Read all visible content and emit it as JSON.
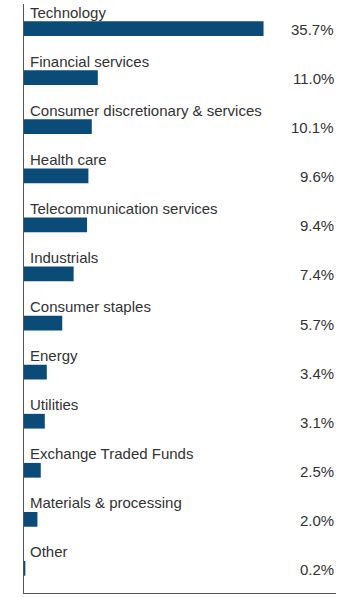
{
  "chart_data": {
    "type": "bar",
    "orientation": "horizontal",
    "categories": [
      "Technology",
      "Financial services",
      "Consumer discretionary & services",
      "Health care",
      "Telecommunication services",
      "Industrials",
      "Consumer staples",
      "Energy",
      "Utilities",
      "Exchange Traded Funds",
      "Materials & processing",
      "Other"
    ],
    "values": [
      35.7,
      11.0,
      10.1,
      9.6,
      9.4,
      7.4,
      5.7,
      3.4,
      3.1,
      2.5,
      2.0,
      0.2
    ],
    "value_labels": [
      "35.7%",
      "11.0%",
      "10.1%",
      "9.6%",
      "9.4%",
      "7.4%",
      "5.7%",
      "3.4%",
      "3.1%",
      "2.5%",
      "2.0%",
      "0.2%"
    ],
    "color": "#0a4b78",
    "xlim": [
      0,
      46.5
    ],
    "data_labels": true,
    "tick_labels": false,
    "grid": false
  }
}
